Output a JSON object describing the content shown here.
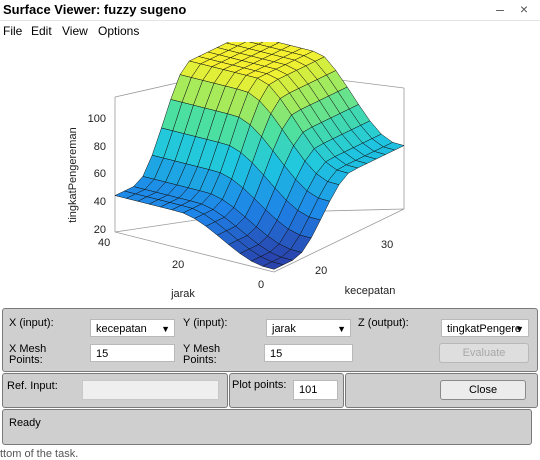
{
  "window": {
    "title": "Surface Viewer: fuzzy sugeno",
    "controls": "– ×"
  },
  "menu": {
    "file": "File",
    "edit": "Edit",
    "view": "View",
    "options": "Options"
  },
  "plot": {
    "zlabel": "tingkatPengereman",
    "xlabel": "jarak",
    "ylabel": "kecepatan",
    "z_ticks": [
      "100",
      "80",
      "60",
      "40",
      "20"
    ],
    "x_ticks": [
      "40",
      "20",
      "0"
    ],
    "y_ticks": [
      "30",
      "20"
    ],
    "colormap": [
      "#2a3ea8",
      "#1e84e8",
      "#1ec6e0",
      "#4ee0a0",
      "#b4ec50",
      "#f4f030"
    ]
  },
  "controls": {
    "x_label": "X (input):",
    "x_value": "kecepatan",
    "y_label": "Y (input):",
    "y_value": "jarak",
    "z_label": "Z (output):",
    "z_value": "tingkatPengere",
    "xmesh_label_1": "X Mesh",
    "xmesh_label_2": "Points:",
    "xmesh_value": "15",
    "ymesh_label_1": "Y Mesh",
    "ymesh_label_2": "Points:",
    "ymesh_value": "15",
    "evaluate": "Evaluate"
  },
  "ref": {
    "label": "Ref. Input:",
    "value": ""
  },
  "plotpoints": {
    "label": "Plot points:",
    "value": "101"
  },
  "close": "Close",
  "status": "Ready",
  "footer": "ttom of the task."
}
